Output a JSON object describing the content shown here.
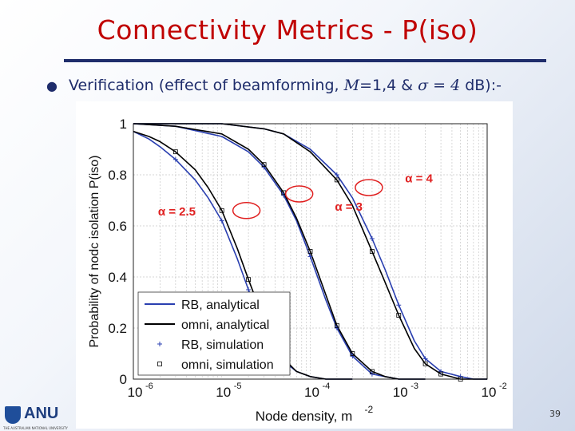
{
  "slide": {
    "title": "Connectivity Metrics - P(iso)",
    "bullet_prefix": "Verification (effect of beamforming, ",
    "bullet_m": "M",
    "bullet_mid": "=1,4 & ",
    "bullet_sigma": "σ = 4",
    "bullet_suffix": " dB):-",
    "page_number": "39",
    "logo_text": "ANU",
    "logo_sub": "THE AUSTRALIAN NATIONAL UNIVERSITY"
  },
  "colors": {
    "title": "#c00000",
    "rule": "#1f2d6b",
    "rb": "#2a3fb0",
    "omni": "#000000",
    "highlight": "#e02020"
  },
  "chart_data": {
    "type": "line",
    "xscale": "log",
    "xlim": [
      1e-06,
      0.01
    ],
    "ylim": [
      0,
      1
    ],
    "xlabel": "Node density, m",
    "xlabel_sup": "-2",
    "ylabel": "Probability of nodc isolation P(iso)",
    "x_ticks": [
      {
        "base": "10",
        "exp": "-6"
      },
      {
        "base": "10",
        "exp": "-5"
      },
      {
        "base": "10",
        "exp": "-4"
      },
      {
        "base": "10",
        "exp": "-3"
      },
      {
        "base": "10",
        "exp": "-2"
      }
    ],
    "y_ticks": [
      "0",
      "0.2",
      "0.4",
      "0.6",
      "0.8",
      "1"
    ],
    "grid": true,
    "legend": {
      "placement": "bottom-left",
      "entries": [
        {
          "label": "RB, analytical",
          "style": "line",
          "color": "#2a3fb0"
        },
        {
          "label": "omni, analytical",
          "style": "line",
          "color": "#000000"
        },
        {
          "label": "RB, simulation",
          "style": "plus",
          "color": "#2a3fb0"
        },
        {
          "label": "omni, simulation",
          "style": "square",
          "color": "#000000"
        }
      ]
    },
    "annotations": [
      {
        "label": "α = 2.5"
      },
      {
        "label": "α = 3"
      },
      {
        "label": "α = 4"
      }
    ],
    "series": [
      {
        "name": "RB, analytical",
        "alpha": "2.5",
        "x": [
          1e-06,
          1.5e-06,
          2e-06,
          3e-06,
          5e-06,
          7e-06,
          1e-05,
          1.5e-05,
          2e-05,
          3e-05,
          5e-05,
          7e-05,
          0.0001,
          0.00015,
          0.0002,
          0.0003
        ],
        "y": [
          0.97,
          0.94,
          0.91,
          0.86,
          0.78,
          0.71,
          0.62,
          0.47,
          0.35,
          0.2,
          0.07,
          0.03,
          0.01,
          0.0,
          0.0,
          0.0
        ]
      },
      {
        "name": "omni, analytical",
        "alpha": "2.5",
        "x": [
          1e-06,
          1.5e-06,
          2e-06,
          3e-06,
          5e-06,
          7e-06,
          1e-05,
          1.5e-05,
          2e-05,
          3e-05,
          5e-05,
          7e-05,
          0.0001,
          0.00015,
          0.0002,
          0.0003
        ],
        "y": [
          0.97,
          0.95,
          0.93,
          0.89,
          0.82,
          0.75,
          0.66,
          0.51,
          0.39,
          0.23,
          0.08,
          0.03,
          0.01,
          0.0,
          0.0,
          0.0
        ]
      },
      {
        "name": "RB, analytical",
        "alpha": "3",
        "x": [
          1e-06,
          3e-06,
          1e-05,
          2e-05,
          3e-05,
          5e-05,
          7e-05,
          0.0001,
          0.00015,
          0.0002,
          0.0003,
          0.0005,
          0.0007,
          0.001,
          0.002
        ],
        "y": [
          1.0,
          0.99,
          0.95,
          0.89,
          0.83,
          0.72,
          0.62,
          0.48,
          0.31,
          0.2,
          0.09,
          0.02,
          0.01,
          0.0,
          0.0
        ]
      },
      {
        "name": "omni, analytical",
        "alpha": "3",
        "x": [
          1e-06,
          3e-06,
          1e-05,
          2e-05,
          3e-05,
          5e-05,
          7e-05,
          0.0001,
          0.00015,
          0.0002,
          0.0003,
          0.0005,
          0.0007,
          0.001,
          0.002
        ],
        "y": [
          1.0,
          0.99,
          0.96,
          0.9,
          0.84,
          0.73,
          0.63,
          0.5,
          0.33,
          0.21,
          0.1,
          0.03,
          0.01,
          0.0,
          0.0
        ]
      },
      {
        "name": "RB, analytical",
        "alpha": "4",
        "x": [
          1e-06,
          1e-05,
          3e-05,
          5e-05,
          0.0001,
          0.0002,
          0.0003,
          0.0005,
          0.0007,
          0.001,
          0.0015,
          0.002,
          0.003,
          0.005,
          0.007,
          0.01
        ],
        "y": [
          1.0,
          1.0,
          0.98,
          0.96,
          0.9,
          0.8,
          0.71,
          0.55,
          0.43,
          0.29,
          0.15,
          0.08,
          0.03,
          0.01,
          0.0,
          0.0
        ]
      },
      {
        "name": "omni, analytical",
        "alpha": "4",
        "x": [
          1e-06,
          1e-05,
          3e-05,
          5e-05,
          0.0001,
          0.0002,
          0.0003,
          0.0005,
          0.0007,
          0.001,
          0.0015,
          0.002,
          0.003,
          0.005,
          0.007,
          0.01
        ],
        "y": [
          1.0,
          1.0,
          0.98,
          0.96,
          0.89,
          0.78,
          0.68,
          0.5,
          0.38,
          0.25,
          0.12,
          0.06,
          0.02,
          0.0,
          0.0,
          0.0
        ]
      }
    ],
    "simulation_points": [
      {
        "name": "RB, simulation",
        "alpha": "2.5",
        "x": [
          3e-06,
          1e-05,
          2e-05,
          3e-05,
          5e-05
        ],
        "y": [
          0.86,
          0.62,
          0.35,
          0.2,
          0.07
        ]
      },
      {
        "name": "omni, simulation",
        "alpha": "2.5",
        "x": [
          3e-06,
          1e-05,
          2e-05,
          3e-05,
          5e-05
        ],
        "y": [
          0.89,
          0.66,
          0.39,
          0.23,
          0.08
        ]
      },
      {
        "name": "RB, simulation",
        "alpha": "3",
        "x": [
          3e-05,
          5e-05,
          0.0001,
          0.0002,
          0.0003,
          0.0005
        ],
        "y": [
          0.83,
          0.72,
          0.48,
          0.2,
          0.09,
          0.02
        ]
      },
      {
        "name": "omni, simulation",
        "alpha": "3",
        "x": [
          3e-05,
          5e-05,
          0.0001,
          0.0002,
          0.0003,
          0.0005
        ],
        "y": [
          0.84,
          0.73,
          0.5,
          0.21,
          0.1,
          0.03
        ]
      },
      {
        "name": "RB, simulation",
        "alpha": "4",
        "x": [
          0.0002,
          0.0005,
          0.001,
          0.002,
          0.003,
          0.005
        ],
        "y": [
          0.8,
          0.55,
          0.29,
          0.08,
          0.03,
          0.01
        ]
      },
      {
        "name": "omni, simulation",
        "alpha": "4",
        "x": [
          0.0002,
          0.0005,
          0.001,
          0.002,
          0.003,
          0.005
        ],
        "y": [
          0.78,
          0.5,
          0.25,
          0.06,
          0.02,
          0.0
        ]
      }
    ]
  }
}
